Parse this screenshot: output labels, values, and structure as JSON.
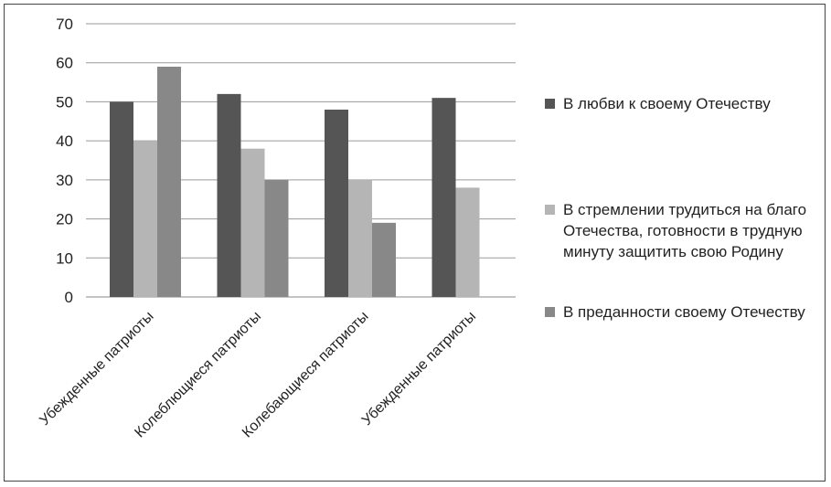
{
  "chart_data": {
    "type": "bar",
    "categories": [
      "Убежденные патриоты",
      "Колеблющиеся патриоты",
      "Колебающиеся патриоты",
      "Убежденные патриоты"
    ],
    "series": [
      {
        "name": "В любви к своему Отечеству",
        "color": "#555555",
        "values": [
          50,
          52,
          48,
          51
        ]
      },
      {
        "name": "В стремлении трудиться на благо Отечества, готовности в трудную минуту защитить свою Родину",
        "color": "#b5b5b5",
        "values": [
          40,
          38,
          30,
          28
        ]
      },
      {
        "name": "В преданности своему Отечеству",
        "color": "#888888",
        "values": [
          59,
          30,
          19,
          null
        ]
      }
    ],
    "yticks": [
      0,
      10,
      20,
      30,
      40,
      50,
      60,
      70
    ],
    "ylim": [
      0,
      70
    ],
    "grid": true,
    "legend_position": "right"
  }
}
